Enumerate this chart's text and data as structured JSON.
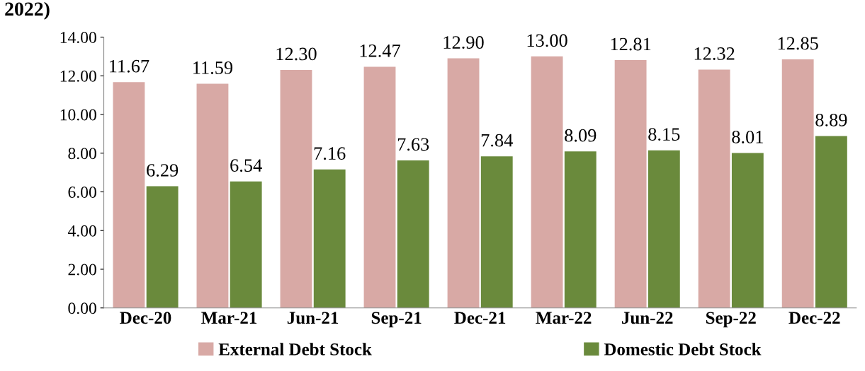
{
  "chart_data": {
    "type": "bar",
    "title": "2022)",
    "categories": [
      "Dec-20",
      "Mar-21",
      "Jun-21",
      "Sep-21",
      "Dec-21",
      "Mar-22",
      "Jun-22",
      "Sep-22",
      "Dec-22"
    ],
    "series": [
      {
        "name": "External Debt Stock",
        "color": "#d8a9a5",
        "values": [
          11.67,
          11.59,
          12.3,
          12.47,
          12.9,
          13.0,
          12.81,
          12.32,
          12.85
        ],
        "value_labels": [
          "11.67",
          "11.59",
          "12.30",
          "12.47",
          "12.90",
          "13.00",
          "12.81",
          "12.32",
          "12.85"
        ]
      },
      {
        "name": "Domestic Debt Stock",
        "color": "#6a8a3c",
        "values": [
          6.29,
          6.54,
          7.16,
          7.63,
          7.84,
          8.09,
          8.15,
          8.01,
          8.89
        ],
        "value_labels": [
          "6.29",
          "6.54",
          "7.16",
          "7.63",
          "7.84",
          "8.09",
          "8.15",
          "8.01",
          "8.89"
        ]
      }
    ],
    "ylim": [
      0,
      14
    ],
    "yticks": [
      {
        "value": 0,
        "label": "0.00"
      },
      {
        "value": 2,
        "label": "2.00"
      },
      {
        "value": 4,
        "label": "4.00"
      },
      {
        "value": 6,
        "label": "6.00"
      },
      {
        "value": 8,
        "label": "8.00"
      },
      {
        "value": 10,
        "label": "10.00"
      },
      {
        "value": 12,
        "label": "12.00"
      },
      {
        "value": 14,
        "label": "14.00"
      }
    ],
    "grid": false,
    "legend": "bottom"
  }
}
